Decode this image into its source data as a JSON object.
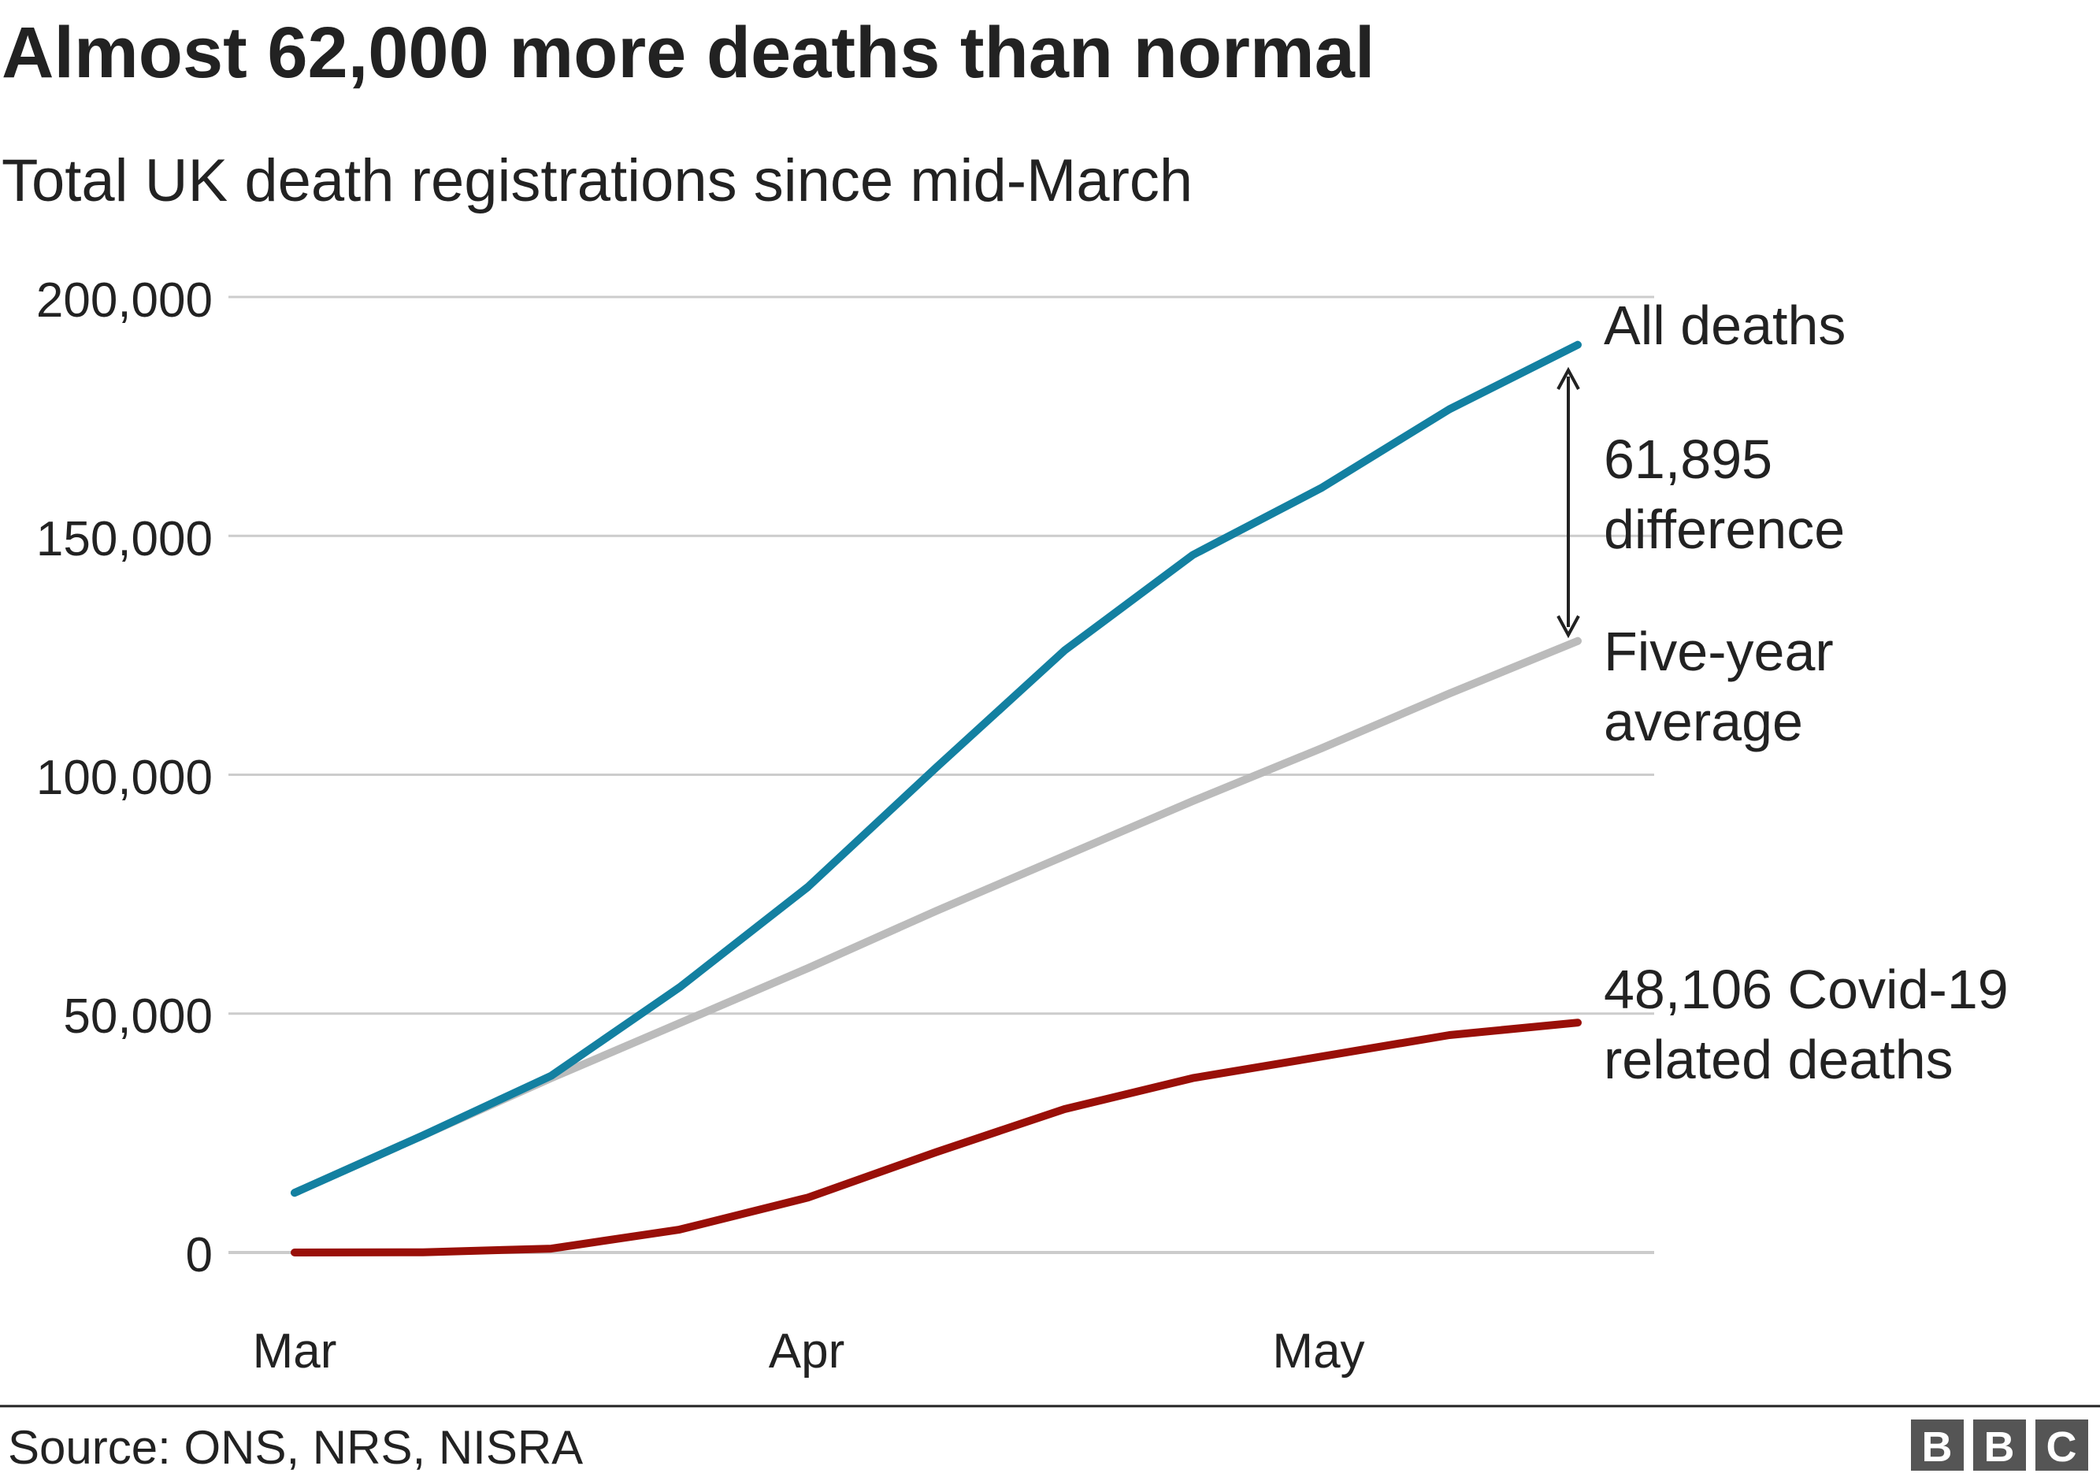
{
  "chart_data": {
    "type": "line",
    "title": "Almost 62,000 more deaths than normal",
    "subtitle": "Total UK death registrations since mid-March",
    "xlabel": "",
    "ylabel": "",
    "x_tick_labels": [
      "Mar",
      "Apr",
      "May"
    ],
    "y_tick_labels": [
      "200,000",
      "150,000",
      "100,000",
      "50,000",
      "0"
    ],
    "y_ticks": [
      200000,
      150000,
      100000,
      50000,
      0
    ],
    "ylim": [
      0,
      200000
    ],
    "grid": true,
    "x": [
      "2020-03-20",
      "2020-03-27",
      "2020-04-03",
      "2020-04-10",
      "2020-04-17",
      "2020-04-24",
      "2020-05-01",
      "2020-05-08",
      "2020-05-15",
      "2020-05-22",
      "2020-05-29"
    ],
    "series": [
      {
        "name": "All deaths",
        "color": "#1380a1",
        "values": [
          12500,
          24500,
          37000,
          55500,
          76500,
          101500,
          126000,
          146000,
          160000,
          176500,
          190000
        ]
      },
      {
        "name": "Five-year average",
        "color": "#bbbbbb",
        "values": [
          12500,
          24500,
          36500,
          48000,
          59500,
          71500,
          83000,
          94500,
          105500,
          117000,
          128000
        ]
      },
      {
        "name": "48,106 Covid-19 related deaths",
        "color": "#990f08",
        "values": [
          0,
          50,
          800,
          4800,
          11500,
          21000,
          30000,
          36500,
          41000,
          45500,
          48106
        ]
      }
    ],
    "annotations": {
      "all_deaths_label": "All deaths",
      "difference_value": "61,895",
      "difference_label": "difference",
      "average_label_line1": "Five-year",
      "average_label_line2": "average",
      "covid_label_line1": "48,106 Covid-19",
      "covid_label_line2": "related deaths"
    }
  },
  "footer": {
    "source": "Source: ONS, NRS, NISRA",
    "logo_letters": [
      "B",
      "B",
      "C"
    ]
  },
  "colors": {
    "text": "#222222",
    "grid": "#cccccc",
    "arrow": "#222222",
    "logo_bg": "#555555",
    "logo_text": "#ffffff"
  }
}
